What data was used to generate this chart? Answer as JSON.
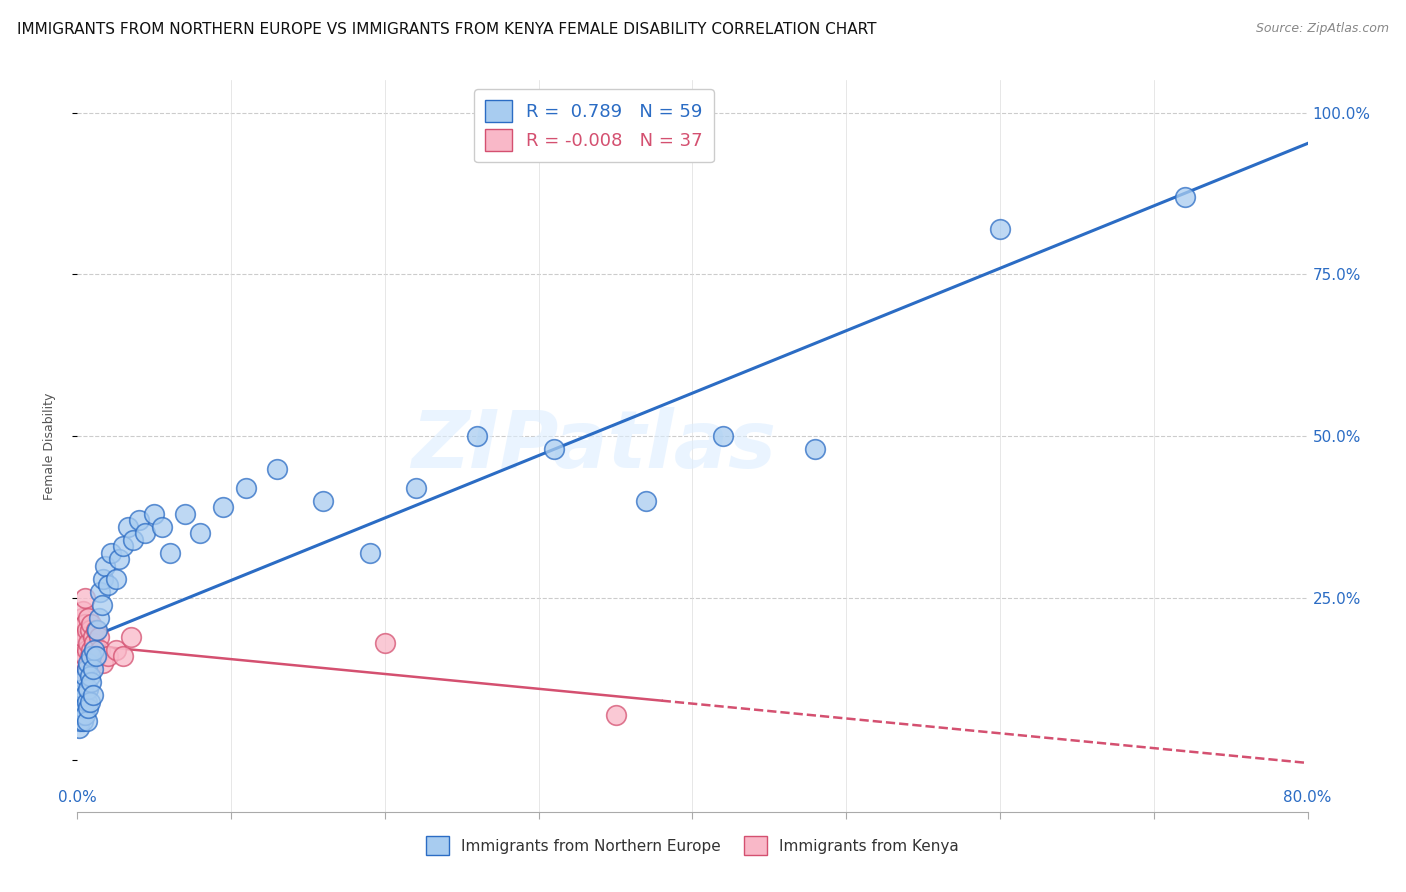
{
  "title": "IMMIGRANTS FROM NORTHERN EUROPE VS IMMIGRANTS FROM KENYA FEMALE DISABILITY CORRELATION CHART",
  "source": "Source: ZipAtlas.com",
  "ylabel": "Female Disability",
  "right_yticks": [
    "100.0%",
    "75.0%",
    "50.0%",
    "25.0%"
  ],
  "right_ytick_vals": [
    1.0,
    0.75,
    0.5,
    0.25
  ],
  "watermark": "ZIPatlas",
  "blue_R": 0.789,
  "blue_N": 59,
  "pink_R": -0.008,
  "pink_N": 37,
  "blue_color": "#A8CCF0",
  "blue_line_color": "#2B6CC4",
  "pink_color": "#F9B8C8",
  "pink_line_color": "#D45070",
  "blue_scatter_x": [
    0.001,
    0.002,
    0.002,
    0.003,
    0.003,
    0.003,
    0.004,
    0.004,
    0.004,
    0.005,
    0.005,
    0.005,
    0.006,
    0.006,
    0.006,
    0.007,
    0.007,
    0.007,
    0.008,
    0.008,
    0.009,
    0.009,
    0.01,
    0.01,
    0.011,
    0.012,
    0.013,
    0.014,
    0.015,
    0.016,
    0.017,
    0.018,
    0.02,
    0.022,
    0.025,
    0.027,
    0.03,
    0.033,
    0.036,
    0.04,
    0.044,
    0.05,
    0.055,
    0.06,
    0.07,
    0.08,
    0.095,
    0.11,
    0.13,
    0.16,
    0.19,
    0.22,
    0.26,
    0.31,
    0.37,
    0.42,
    0.48,
    0.6,
    0.72
  ],
  "blue_scatter_y": [
    0.05,
    0.06,
    0.1,
    0.07,
    0.09,
    0.12,
    0.06,
    0.08,
    0.11,
    0.07,
    0.1,
    0.13,
    0.06,
    0.09,
    0.14,
    0.08,
    0.11,
    0.15,
    0.09,
    0.13,
    0.12,
    0.16,
    0.1,
    0.14,
    0.17,
    0.16,
    0.2,
    0.22,
    0.26,
    0.24,
    0.28,
    0.3,
    0.27,
    0.32,
    0.28,
    0.31,
    0.33,
    0.36,
    0.34,
    0.37,
    0.35,
    0.38,
    0.36,
    0.32,
    0.38,
    0.35,
    0.39,
    0.42,
    0.45,
    0.4,
    0.32,
    0.42,
    0.5,
    0.48,
    0.4,
    0.5,
    0.48,
    0.82,
    0.87
  ],
  "pink_scatter_x": [
    0.001,
    0.001,
    0.002,
    0.002,
    0.002,
    0.003,
    0.003,
    0.003,
    0.004,
    0.004,
    0.004,
    0.005,
    0.005,
    0.005,
    0.006,
    0.006,
    0.006,
    0.007,
    0.007,
    0.008,
    0.008,
    0.009,
    0.009,
    0.01,
    0.01,
    0.011,
    0.012,
    0.013,
    0.014,
    0.015,
    0.017,
    0.02,
    0.025,
    0.03,
    0.035,
    0.2,
    0.35
  ],
  "pink_scatter_y": [
    0.1,
    0.13,
    0.12,
    0.16,
    0.2,
    0.15,
    0.18,
    0.22,
    0.14,
    0.19,
    0.23,
    0.16,
    0.21,
    0.25,
    0.17,
    0.2,
    0.14,
    0.18,
    0.22,
    0.16,
    0.2,
    0.17,
    0.21,
    0.15,
    0.19,
    0.18,
    0.2,
    0.16,
    0.19,
    0.17,
    0.15,
    0.16,
    0.17,
    0.16,
    0.19,
    0.18,
    0.07
  ],
  "xlim": [
    0.0,
    0.8
  ],
  "ylim": [
    -0.08,
    1.05
  ],
  "title_fontsize": 11,
  "axis_fontsize": 9,
  "tick_fontsize": 10
}
